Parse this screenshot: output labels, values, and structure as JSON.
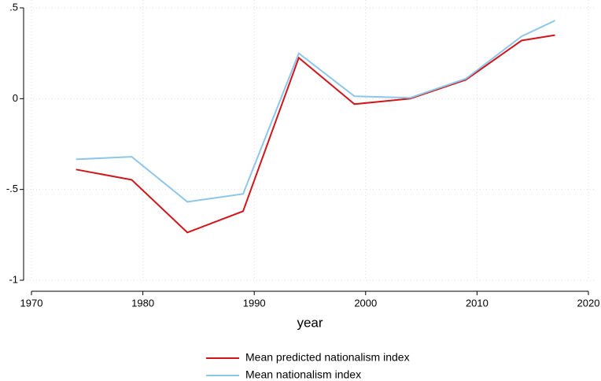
{
  "chart_data": {
    "type": "line",
    "x_label": "year",
    "x": [
      1974,
      1979,
      1984,
      1989,
      1994,
      1999,
      2004,
      2009,
      2014,
      2017
    ],
    "series": [
      {
        "name": "Mean predicted nationalism index",
        "color": "#d0161b",
        "values": [
          -0.39,
          -0.447,
          -0.737,
          -0.62,
          0.225,
          -0.03,
          0.0,
          0.104,
          0.32,
          0.35
        ]
      },
      {
        "name": "Mean nationalism index",
        "color": "#8ec6e8",
        "values": [
          -0.334,
          -0.32,
          -0.568,
          -0.525,
          0.25,
          0.013,
          0.005,
          0.11,
          0.343,
          0.43
        ]
      }
    ],
    "xlim": [
      1970,
      2020
    ],
    "xticks": [
      1970,
      1980,
      1990,
      2000,
      2010,
      2020
    ],
    "ylim": [
      -1,
      0.5
    ],
    "yticks": [
      {
        "value": 0.5,
        "label": ".5"
      },
      0,
      {
        "value": -0.5,
        "label": "-.5"
      },
      -1
    ],
    "grid": true,
    "legend": "bottom"
  }
}
